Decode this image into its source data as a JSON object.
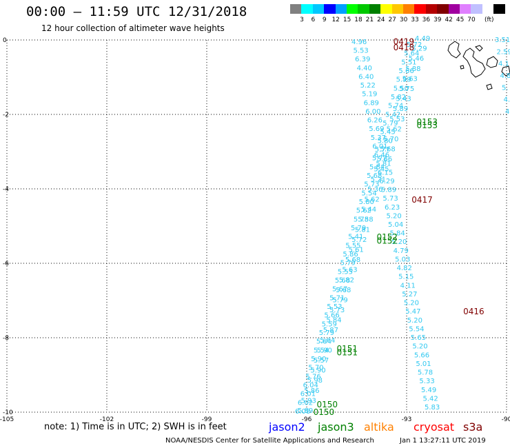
{
  "title": "00:00 – 11:59 UTC 12/31/2018",
  "subtitle": "12 hour collection of altimeter wave heights",
  "scale": {
    "colors": [
      "#808080",
      "#00ffff",
      "#00c8ff",
      "#0000ff",
      "#00a0ff",
      "#00ff00",
      "#00c800",
      "#008000",
      "#ffff00",
      "#ffc800",
      "#ff8000",
      "#ff0000",
      "#b40000",
      "#800000",
      "#a000a0",
      "#e080ff",
      "#c0c0ff",
      "#ffffff",
      "#000000"
    ],
    "labels": [
      "3",
      "6",
      "9",
      "12",
      "15",
      "18",
      "21",
      "24",
      "27",
      "30",
      "33",
      "36",
      "39",
      "42",
      "45",
      "70"
    ],
    "unit": "(ft)"
  },
  "axes": {
    "x_ticks": [
      "-105",
      "-102",
      "-99",
      "-96",
      "-93",
      "-90"
    ],
    "y_ticks": [
      "0",
      "-2",
      "-4",
      "-6",
      "-8",
      "-10"
    ]
  },
  "footer": {
    "note": "note: 1) Time is in UTC; 2) SWH is in feet",
    "missions": [
      {
        "name": "jason2",
        "color": "#0000ff"
      },
      {
        "name": "jason3",
        "color": "#008000"
      },
      {
        "name": "altika",
        "color": "#ff8000"
      },
      {
        "name": "cryosat",
        "color": "#ff0000"
      },
      {
        "name": "s3a",
        "color": "#800000"
      }
    ],
    "credit": "NOAA/NESDIS Center for Satellite Applications and Research",
    "stamp": "Jan  1 13:27:11 UTC 2019"
  },
  "tracks": {
    "track_left": {
      "color": "#30c8f0",
      "values": [
        "4.96",
        "5.53",
        "6.39",
        "4.40",
        "6.40",
        "5.22",
        "5.19",
        "6.89",
        "6.00",
        "6.26",
        "5.69",
        "5.37",
        "6.01",
        "6.46",
        "5.81",
        "6.15",
        "6.29",
        "5.89",
        "5.73",
        "6.23",
        "5.20",
        "5.04",
        "5.84",
        "5.20",
        "4.79",
        "5.03",
        "4.82",
        "5.15",
        "4.11",
        "5.27",
        "5.20",
        "5.47",
        "5.20",
        "5.54",
        "5.65",
        "5.20",
        "5.66",
        "5.01",
        "5.78",
        "5.33",
        "5.49",
        "5.42",
        "5.83"
      ]
    },
    "track_a": {
      "color": "#30c8f0",
      "values": [
        "4.49",
        "5.29",
        "5.46",
        "5.88",
        "5.63",
        "5.75",
        "5.43",
        "5.89",
        "5.53",
        "5.62",
        "5.70",
        "5.68",
        "5.66",
        "5.45",
        "5.21",
        "5.36",
        "5.62",
        "5.44",
        "5.58",
        "5.81",
        "5.72",
        "5.61",
        "5.68",
        "5.63",
        "5.82",
        "5.68",
        "5.79",
        "5.73",
        "5.84",
        "5.87",
        "5.64",
        "5.90",
        "5.57",
        "5.90",
        "5.98",
        "5.86",
        "5.93",
        "5.89"
      ]
    },
    "track_b": {
      "color": "#30c8f0",
      "values": [
        "5.72",
        "5.64",
        "5.51",
        "5.66",
        "5.99",
        "5.50",
        "5.82",
        "5.74",
        "5.42",
        "5.79",
        "5.45",
        "5.80",
        "5.77",
        "5.72",
        "5.84",
        "5.68",
        "5.73",
        "5.54",
        "5.80",
        "5.62",
        "5.78",
        "5.79",
        "5.41",
        "5.55",
        "5.86",
        "5.79",
        "5.55",
        "5.68",
        "5.67",
        "5.71",
        "5.53",
        "5.66",
        "5.59",
        "5.79",
        "5.84",
        "5.54",
        "5.90",
        "5.70",
        "5.76",
        "6.04",
        "6.01",
        "6.02",
        "6.08"
      ]
    },
    "track_right": {
      "color": "#30c8f0",
      "values": [
        "3.51",
        "2.59",
        "4.1",
        "4.8",
        "5.",
        "4.",
        "4."
      ]
    }
  },
  "labels": [
    {
      "text": "0419",
      "color": "#800000",
      "lon": -93.4,
      "lat": -0.05
    },
    {
      "text": "0418",
      "color": "#800000",
      "lon": -93.4,
      "lat": -0.2
    },
    {
      "text": "0153",
      "color": "#008000",
      "lon": -92.7,
      "lat": -2.2
    },
    {
      "text": "0153",
      "color": "#008000",
      "lon": -92.7,
      "lat": -2.3
    },
    {
      "text": "0417",
      "color": "#800000",
      "lon": -92.85,
      "lat": -4.3
    },
    {
      "text": "0152",
      "color": "#008000",
      "lon": -93.9,
      "lat": -5.3
    },
    {
      "text": "0152",
      "color": "#008000",
      "lon": -93.9,
      "lat": -5.4
    },
    {
      "text": "0416",
      "color": "#800000",
      "lon": -91.3,
      "lat": -7.3
    },
    {
      "text": "0151",
      "color": "#008000",
      "lon": -95.1,
      "lat": -8.3
    },
    {
      "text": "0151",
      "color": "#008000",
      "lon": -95.1,
      "lat": -8.4
    },
    {
      "text": "0150",
      "color": "#008000",
      "lon": -95.7,
      "lat": -9.8
    },
    {
      "text": "0150",
      "color": "#008000",
      "lon": -95.8,
      "lat": -10.0
    }
  ]
}
